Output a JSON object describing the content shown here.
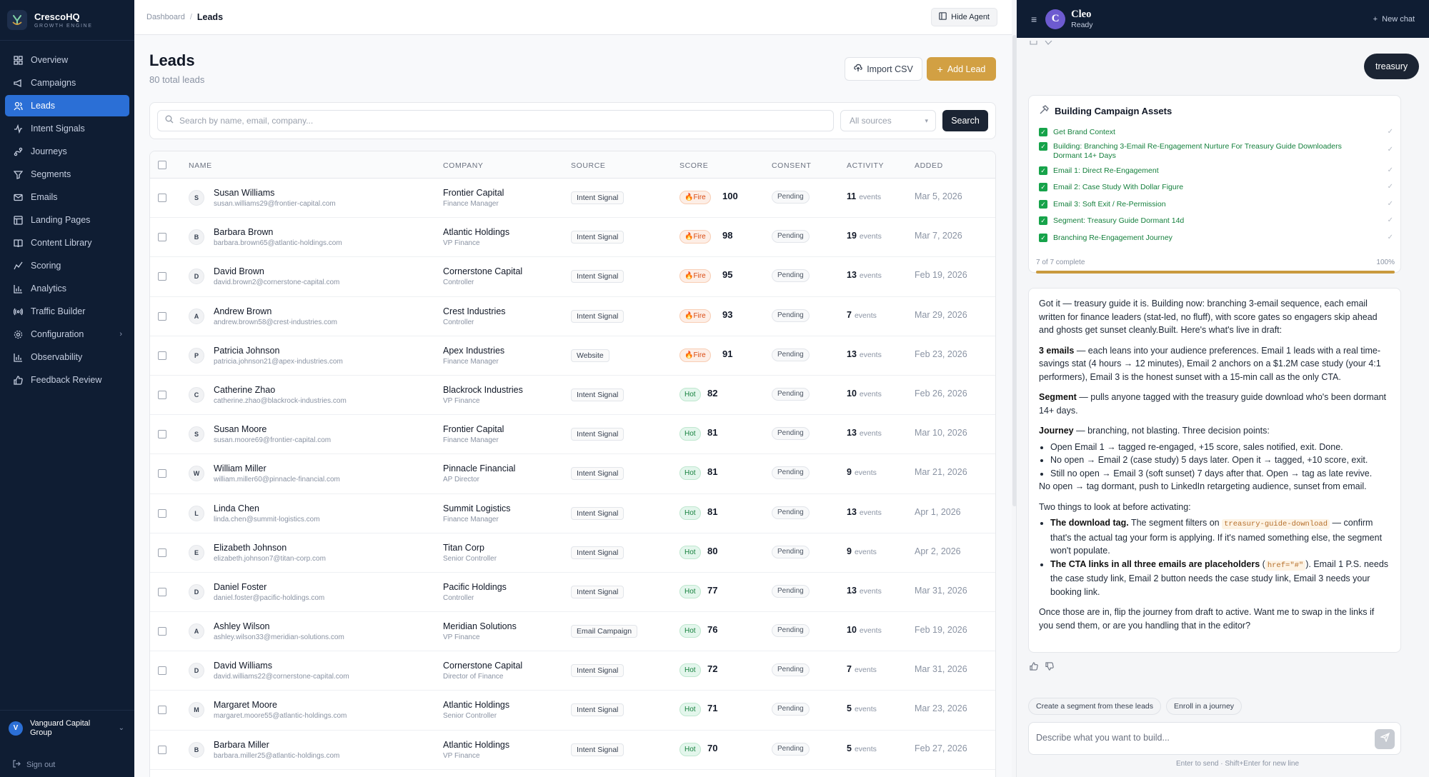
{
  "brand": {
    "name": "CrescoHQ",
    "tagline": "GROWTH ENGINE"
  },
  "sidebar": {
    "items": [
      {
        "label": "Overview",
        "icon": "grid-icon"
      },
      {
        "label": "Campaigns",
        "icon": "megaphone-icon"
      },
      {
        "label": "Leads",
        "icon": "users-icon",
        "active": true
      },
      {
        "label": "Intent Signals",
        "icon": "activity-icon"
      },
      {
        "label": "Journeys",
        "icon": "route-icon"
      },
      {
        "label": "Segments",
        "icon": "filter-icon"
      },
      {
        "label": "Emails",
        "icon": "mail-icon"
      },
      {
        "label": "Landing Pages",
        "icon": "layout-icon"
      },
      {
        "label": "Content Library",
        "icon": "book-icon"
      },
      {
        "label": "Scoring",
        "icon": "trend-icon"
      },
      {
        "label": "Analytics",
        "icon": "bar-chart-icon"
      },
      {
        "label": "Traffic Builder",
        "icon": "broadcast-icon"
      },
      {
        "label": "Configuration",
        "icon": "gear-icon"
      },
      {
        "label": "Observability",
        "icon": "bar-chart-icon"
      },
      {
        "label": "Feedback Review",
        "icon": "thumbs-up-icon"
      }
    ],
    "org": {
      "initial": "V",
      "name": "Vanguard Capital Group"
    },
    "signout": "Sign out"
  },
  "topbar": {
    "crumb_root": "Dashboard",
    "crumb_sep": "/",
    "crumb_current": "Leads",
    "hide_agent": "Hide Agent"
  },
  "page": {
    "title": "Leads",
    "count": "80 total leads",
    "import_label": "Import CSV",
    "add_label": "Add Lead",
    "search_placeholder": "Search by name, email, company...",
    "source_filter": "All sources",
    "search_button": "Search"
  },
  "table": {
    "headers": [
      "NAME",
      "COMPANY",
      "SOURCE",
      "SCORE",
      "CONSENT",
      "ACTIVITY",
      "ADDED"
    ],
    "events_label": "events",
    "rows": [
      {
        "initial": "S",
        "name": "Susan Williams",
        "email": "susan.williams29@frontier-capital.com",
        "company": "Frontier Capital",
        "role": "Finance Manager",
        "source": "Intent Signal",
        "tag": "🔥Fire",
        "tier": "fire",
        "score": "100",
        "consent": "Pending",
        "events": "11",
        "added": "Mar 5, 2026"
      },
      {
        "initial": "B",
        "name": "Barbara Brown",
        "email": "barbara.brown65@atlantic-holdings.com",
        "company": "Atlantic Holdings",
        "role": "VP Finance",
        "source": "Intent Signal",
        "tag": "🔥Fire",
        "tier": "fire",
        "score": "98",
        "consent": "Pending",
        "events": "19",
        "added": "Mar 7, 2026"
      },
      {
        "initial": "D",
        "name": "David Brown",
        "email": "david.brown2@cornerstone-capital.com",
        "company": "Cornerstone Capital",
        "role": "Controller",
        "source": "Intent Signal",
        "tag": "🔥Fire",
        "tier": "fire",
        "score": "95",
        "consent": "Pending",
        "events": "13",
        "added": "Feb 19, 2026"
      },
      {
        "initial": "A",
        "name": "Andrew Brown",
        "email": "andrew.brown58@crest-industries.com",
        "company": "Crest Industries",
        "role": "Controller",
        "source": "Intent Signal",
        "tag": "🔥Fire",
        "tier": "fire",
        "score": "93",
        "consent": "Pending",
        "events": "7",
        "added": "Mar 29, 2026"
      },
      {
        "initial": "P",
        "name": "Patricia Johnson",
        "email": "patricia.johnson21@apex-industries.com",
        "company": "Apex Industries",
        "role": "Finance Manager",
        "source": "Website",
        "tag": "🔥Fire",
        "tier": "fire",
        "score": "91",
        "consent": "Pending",
        "events": "13",
        "added": "Feb 23, 2026"
      },
      {
        "initial": "C",
        "name": "Catherine Zhao",
        "email": "catherine.zhao@blackrock-industries.com",
        "company": "Blackrock Industries",
        "role": "VP Finance",
        "source": "Intent Signal",
        "tag": "Hot",
        "tier": "hot",
        "score": "82",
        "consent": "Pending",
        "events": "10",
        "added": "Feb 26, 2026"
      },
      {
        "initial": "S",
        "name": "Susan Moore",
        "email": "susan.moore69@frontier-capital.com",
        "company": "Frontier Capital",
        "role": "Finance Manager",
        "source": "Intent Signal",
        "tag": "Hot",
        "tier": "hot",
        "score": "81",
        "consent": "Pending",
        "events": "13",
        "added": "Mar 10, 2026"
      },
      {
        "initial": "W",
        "name": "William Miller",
        "email": "william.miller60@pinnacle-financial.com",
        "company": "Pinnacle Financial",
        "role": "AP Director",
        "source": "Intent Signal",
        "tag": "Hot",
        "tier": "hot",
        "score": "81",
        "consent": "Pending",
        "events": "9",
        "added": "Mar 21, 2026"
      },
      {
        "initial": "L",
        "name": "Linda Chen",
        "email": "linda.chen@summit-logistics.com",
        "company": "Summit Logistics",
        "role": "Finance Manager",
        "source": "Intent Signal",
        "tag": "Hot",
        "tier": "hot",
        "score": "81",
        "consent": "Pending",
        "events": "13",
        "added": "Apr 1, 2026"
      },
      {
        "initial": "E",
        "name": "Elizabeth Johnson",
        "email": "elizabeth.johnson7@titan-corp.com",
        "company": "Titan Corp",
        "role": "Senior Controller",
        "source": "Intent Signal",
        "tag": "Hot",
        "tier": "hot",
        "score": "80",
        "consent": "Pending",
        "events": "9",
        "added": "Apr 2, 2026"
      },
      {
        "initial": "D",
        "name": "Daniel Foster",
        "email": "daniel.foster@pacific-holdings.com",
        "company": "Pacific Holdings",
        "role": "Controller",
        "source": "Intent Signal",
        "tag": "Hot",
        "tier": "hot",
        "score": "77",
        "consent": "Pending",
        "events": "13",
        "added": "Mar 31, 2026"
      },
      {
        "initial": "A",
        "name": "Ashley Wilson",
        "email": "ashley.wilson33@meridian-solutions.com",
        "company": "Meridian Solutions",
        "role": "VP Finance",
        "source": "Email Campaign",
        "tag": "Hot",
        "tier": "hot",
        "score": "76",
        "consent": "Pending",
        "events": "10",
        "added": "Feb 19, 2026"
      },
      {
        "initial": "D",
        "name": "David Williams",
        "email": "david.williams22@cornerstone-capital.com",
        "company": "Cornerstone Capital",
        "role": "Director of Finance",
        "source": "Intent Signal",
        "tag": "Hot",
        "tier": "hot",
        "score": "72",
        "consent": "Pending",
        "events": "7",
        "added": "Mar 31, 2026"
      },
      {
        "initial": "M",
        "name": "Margaret Moore",
        "email": "margaret.moore55@atlantic-holdings.com",
        "company": "Atlantic Holdings",
        "role": "Senior Controller",
        "source": "Intent Signal",
        "tag": "Hot",
        "tier": "hot",
        "score": "71",
        "consent": "Pending",
        "events": "5",
        "added": "Mar 23, 2026"
      },
      {
        "initial": "B",
        "name": "Barbara Miller",
        "email": "barbara.miller25@atlantic-holdings.com",
        "company": "Atlantic Holdings",
        "role": "VP Finance",
        "source": "Intent Signal",
        "tag": "Hot",
        "tier": "hot",
        "score": "70",
        "consent": "Pending",
        "events": "5",
        "added": "Feb 27, 2026"
      }
    ]
  },
  "agent": {
    "name": "Cleo",
    "initial": "C",
    "status": "Ready",
    "new_chat": "New chat",
    "user_message": "treasury",
    "assets": {
      "title": "Building Campaign Assets",
      "steps": [
        "Get Brand Context",
        "Building: Branching 3-Email Re-Engagement Nurture For Treasury Guide Downloaders Dormant 14+ Days",
        "Email 1: Direct Re-Engagement",
        "Email 2: Case Study With Dollar Figure",
        "Email 3: Soft Exit / Re-Permission",
        "Segment: Treasury Guide Dormant 14d",
        "Branching Re-Engagement Journey"
      ],
      "progress_label": "7 of 7 complete",
      "progress_pct_label": "100%",
      "progress": 1.0
    },
    "message": {
      "p1": "Got it — treasury guide it is. Building now: branching 3-email sequence, each email written for finance leaders (stat-led, no fluff), with score gates so engagers skip ahead and ghosts get sunset cleanly.Built. Here's what's live in draft:",
      "emails_b": "3 emails",
      "emails_t": " — each leans into your audience preferences. Email 1 leads with a real time-savings stat (4 hours → 12 minutes), Email 2 anchors on a $1.2M case study (your 4:1 performers), Email 3 is the honest sunset with a 15-min call as the only CTA.",
      "segment_b": "Segment",
      "segment_t": " — pulls anyone tagged with the treasury guide download who's been dormant 14+ days.",
      "journey_b": "Journey",
      "journey_t": " — branching, not blasting. Three decision points:",
      "bullets": [
        "Open Email 1 → tagged re-engaged, +15 score, sales notified, exit. Done.",
        "No open → Email 2 (case study) 5 days later. Open it → tagged, +10 score, exit.",
        "Still no open → Email 3 (soft sunset) 7 days after that. Open → tag as late revive."
      ],
      "after_bullets": "No open → tag dormant, push to LinkedIn retargeting audience, sunset from email.",
      "two_things": "Two things to look at before activating:",
      "t1_b": "The download tag.",
      "t1_a": " The segment filters on ",
      "t1_code": "treasury-guide-download",
      "t1_c": " — confirm that's the actual tag your form is applying. If it's named something else, the segment won't populate.",
      "t2_b": "The CTA links in all three emails are placeholders",
      "t2_a": " (",
      "t2_code": "href=\"#\"",
      "t2_c": "). Email 1 P.S. needs the case study link, Email 2 button needs the case study link, Email 3 needs your booking link.",
      "closing": "Once those are in, flip the journey from draft to active. Want me to swap in the links if you send them, or are you handling that in the editor?"
    },
    "chips": [
      "Create a segment from these leads",
      "Enroll in a journey"
    ],
    "input_placeholder": "Describe what you want to build...",
    "hint": "Enter to send · Shift+Enter for new line"
  },
  "colors": {
    "sidebar_bg": "#0f1d33",
    "active_nav": "#2b6fd6",
    "accent_gold": "#d2a043",
    "fire": "#d9480f",
    "hot": "#15803d"
  }
}
